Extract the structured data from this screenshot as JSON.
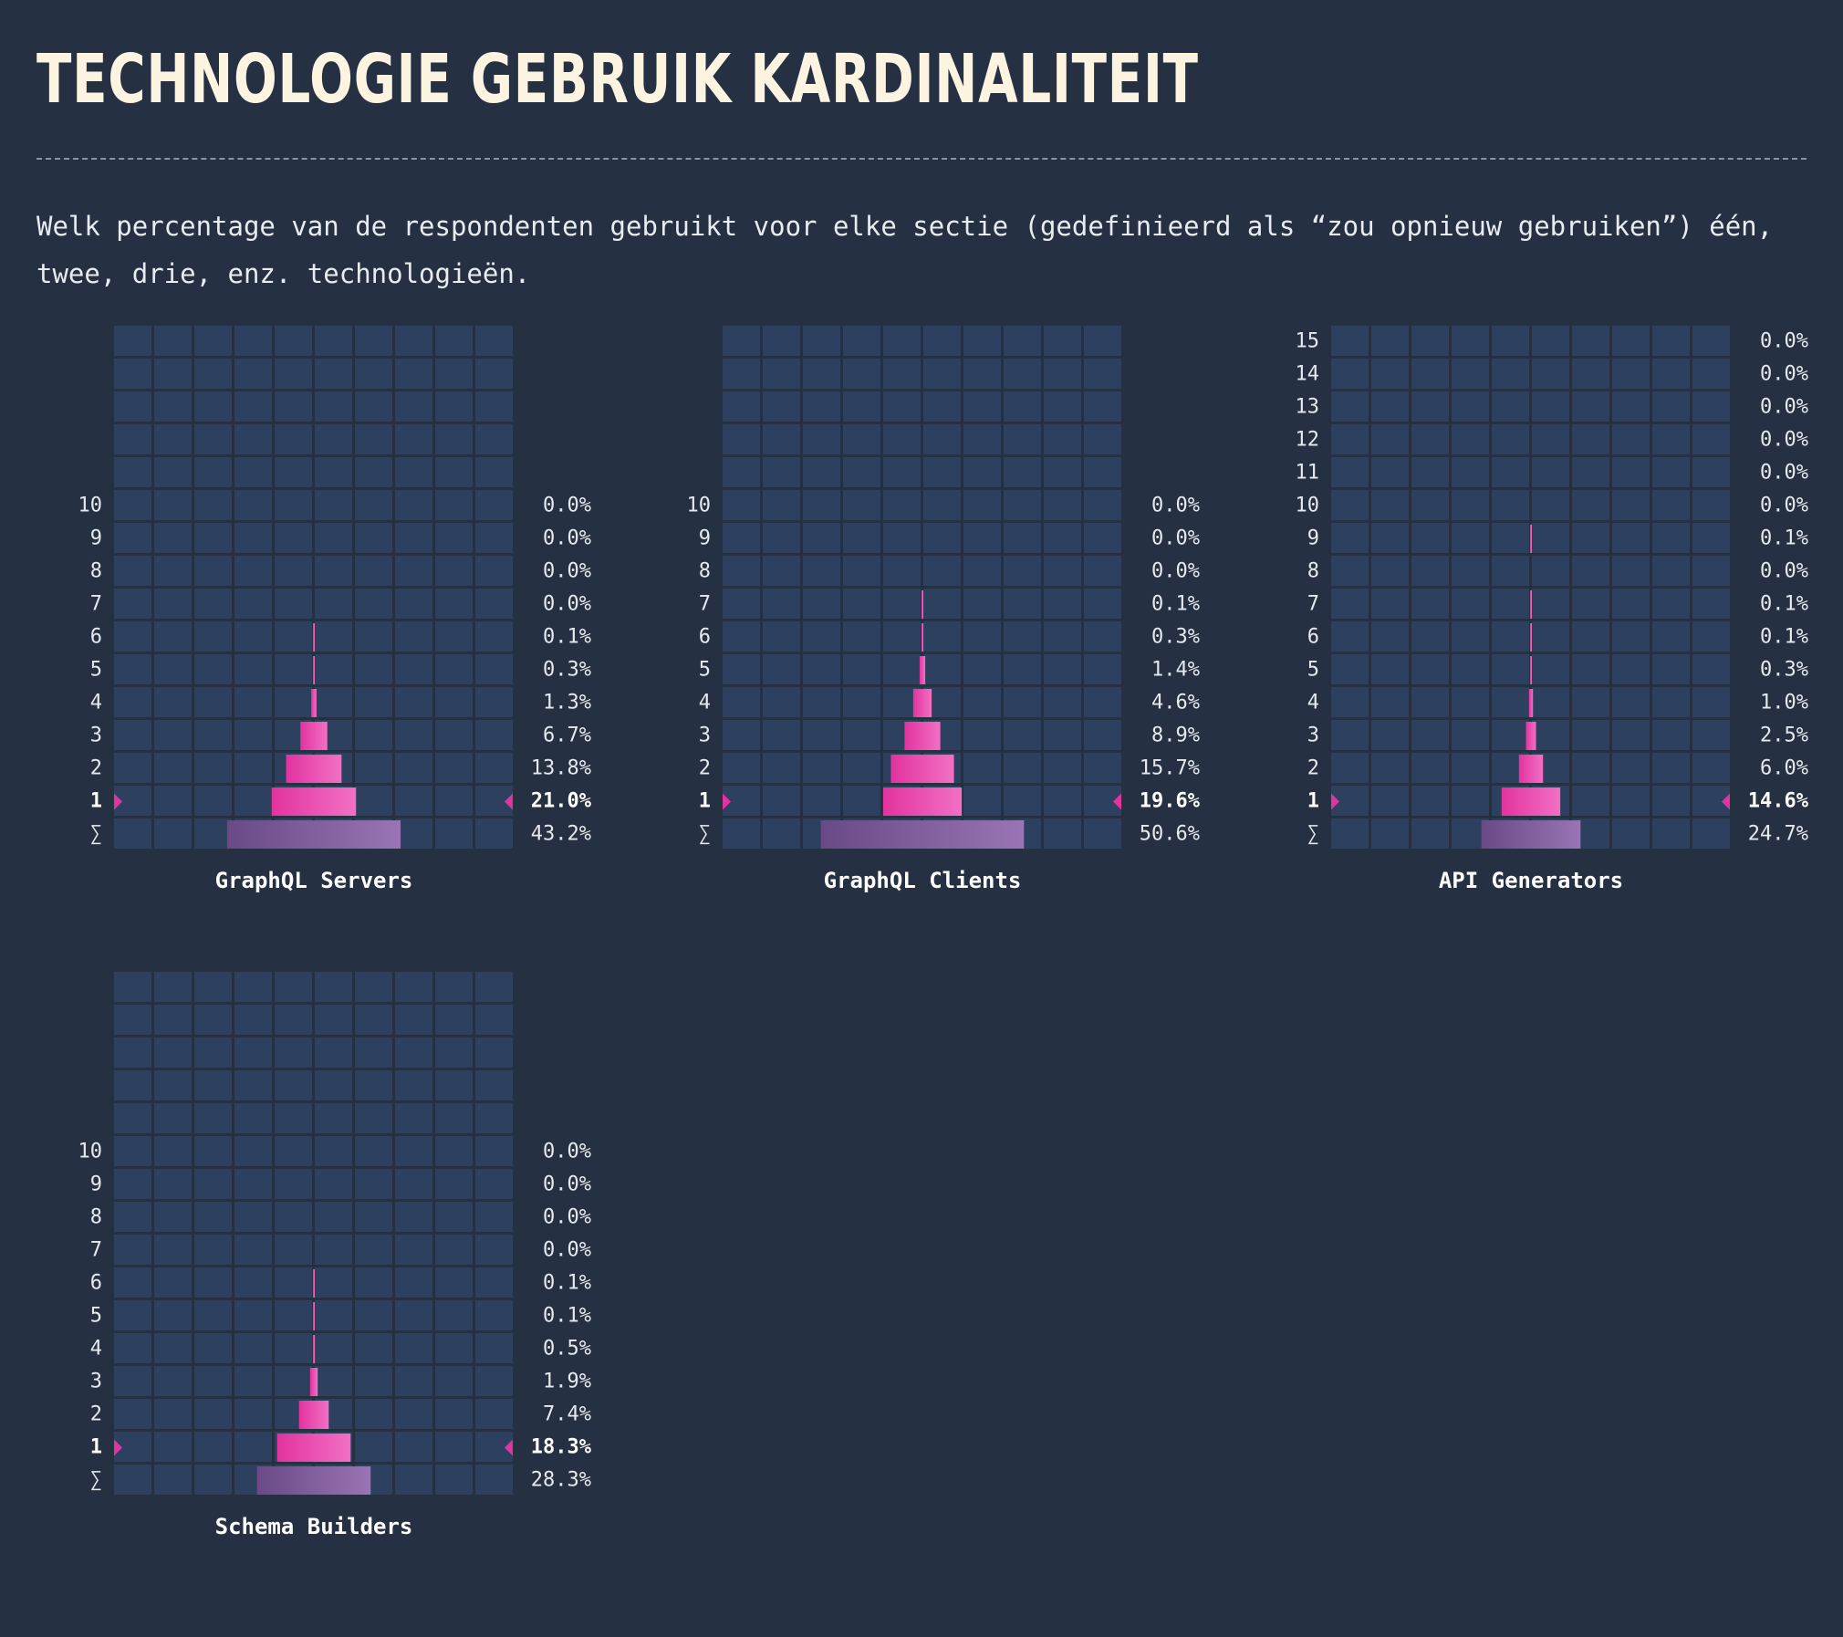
{
  "page": {
    "title": "TECHNOLOGIE GEBRUIK KARDINALITEIT",
    "description": "Welk percentage van de respondenten gebruikt voor elke sectie (gedefinieerd als “zou opnieuw gebruiken”) één, twee, drie, enz. technologieën."
  },
  "colors": {
    "background": "#253142",
    "grid_cell": "#2e4060",
    "bar_start": "#e2339f",
    "bar_end": "#f270c4",
    "total_start": "#6a4987",
    "total_end": "#9a74b4",
    "marker": "#e2339f"
  },
  "chart_data": [
    {
      "type": "bar",
      "title": "GraphQL Servers",
      "highlight": "1",
      "rows": [
        {
          "label": "10",
          "value": 0.0,
          "text": "0.0%"
        },
        {
          "label": "9",
          "value": 0.0,
          "text": "0.0%"
        },
        {
          "label": "8",
          "value": 0.0,
          "text": "0.0%"
        },
        {
          "label": "7",
          "value": 0.0,
          "text": "0.0%"
        },
        {
          "label": "6",
          "value": 0.1,
          "text": "0.1%"
        },
        {
          "label": "5",
          "value": 0.3,
          "text": "0.3%"
        },
        {
          "label": "4",
          "value": 1.3,
          "text": "1.3%"
        },
        {
          "label": "3",
          "value": 6.7,
          "text": "6.7%"
        },
        {
          "label": "2",
          "value": 13.8,
          "text": "13.8%"
        },
        {
          "label": "1",
          "value": 21.0,
          "text": "21.0%"
        },
        {
          "label": "∑",
          "value": 43.2,
          "text": "43.2%"
        }
      ]
    },
    {
      "type": "bar",
      "title": "GraphQL Clients",
      "highlight": "1",
      "rows": [
        {
          "label": "10",
          "value": 0.0,
          "text": "0.0%"
        },
        {
          "label": "9",
          "value": 0.0,
          "text": "0.0%"
        },
        {
          "label": "8",
          "value": 0.0,
          "text": "0.0%"
        },
        {
          "label": "7",
          "value": 0.1,
          "text": "0.1%"
        },
        {
          "label": "6",
          "value": 0.3,
          "text": "0.3%"
        },
        {
          "label": "5",
          "value": 1.4,
          "text": "1.4%"
        },
        {
          "label": "4",
          "value": 4.6,
          "text": "4.6%"
        },
        {
          "label": "3",
          "value": 8.9,
          "text": "8.9%"
        },
        {
          "label": "2",
          "value": 15.7,
          "text": "15.7%"
        },
        {
          "label": "1",
          "value": 19.6,
          "text": "19.6%"
        },
        {
          "label": "∑",
          "value": 50.6,
          "text": "50.6%"
        }
      ]
    },
    {
      "type": "bar",
      "title": "API Generators",
      "highlight": "1",
      "rows": [
        {
          "label": "15",
          "value": 0.0,
          "text": "0.0%"
        },
        {
          "label": "14",
          "value": 0.0,
          "text": "0.0%"
        },
        {
          "label": "13",
          "value": 0.0,
          "text": "0.0%"
        },
        {
          "label": "12",
          "value": 0.0,
          "text": "0.0%"
        },
        {
          "label": "11",
          "value": 0.0,
          "text": "0.0%"
        },
        {
          "label": "10",
          "value": 0.0,
          "text": "0.0%"
        },
        {
          "label": "9",
          "value": 0.1,
          "text": "0.1%"
        },
        {
          "label": "8",
          "value": 0.0,
          "text": "0.0%"
        },
        {
          "label": "7",
          "value": 0.1,
          "text": "0.1%"
        },
        {
          "label": "6",
          "value": 0.1,
          "text": "0.1%"
        },
        {
          "label": "5",
          "value": 0.3,
          "text": "0.3%"
        },
        {
          "label": "4",
          "value": 1.0,
          "text": "1.0%"
        },
        {
          "label": "3",
          "value": 2.5,
          "text": "2.5%"
        },
        {
          "label": "2",
          "value": 6.0,
          "text": "6.0%"
        },
        {
          "label": "1",
          "value": 14.6,
          "text": "14.6%"
        },
        {
          "label": "∑",
          "value": 24.7,
          "text": "24.7%"
        }
      ]
    },
    {
      "type": "bar",
      "title": "Schema Builders",
      "highlight": "1",
      "rows": [
        {
          "label": "10",
          "value": 0.0,
          "text": "0.0%"
        },
        {
          "label": "9",
          "value": 0.0,
          "text": "0.0%"
        },
        {
          "label": "8",
          "value": 0.0,
          "text": "0.0%"
        },
        {
          "label": "7",
          "value": 0.0,
          "text": "0.0%"
        },
        {
          "label": "6",
          "value": 0.1,
          "text": "0.1%"
        },
        {
          "label": "5",
          "value": 0.1,
          "text": "0.1%"
        },
        {
          "label": "4",
          "value": 0.5,
          "text": "0.5%"
        },
        {
          "label": "3",
          "value": 1.9,
          "text": "1.9%"
        },
        {
          "label": "2",
          "value": 7.4,
          "text": "7.4%"
        },
        {
          "label": "1",
          "value": 18.3,
          "text": "18.3%"
        },
        {
          "label": "∑",
          "value": 28.3,
          "text": "28.3%"
        }
      ]
    }
  ]
}
